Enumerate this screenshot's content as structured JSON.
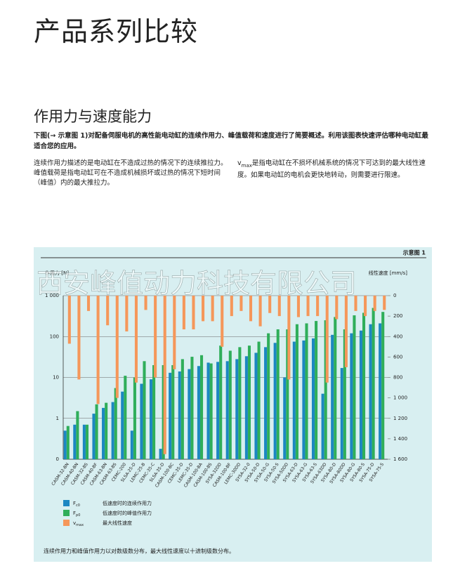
{
  "header": {
    "title": "产品系列比较",
    "subtitle": "作用力与速度能力",
    "lead": "下图(→ 示意图 1)对配备伺服电机的高性能电动缸的连续作用力、峰值载荷和速度进行了简要概述。利用该图表快速评估哪种电动缸最适合您的应用。",
    "col1": "连续作用力描述的是电动缸在不造成过热的情况下的连续推拉力。峰值载荷是指电动缸可在不造成机械损坏或过热的情况下短时间（峰值）内的最大推拉力。",
    "col2_symbol": "v",
    "col2_sub": "max",
    "col2": "是指电动缸在不损坏机械系统的情况下可达到的最大线性速度。如果电动缸的电机会更快地转动，则需要进行限速。"
  },
  "chart_data": {
    "type": "bar",
    "figure_label": "示意图 1",
    "watermark": "西安峰值动力科技有限公司",
    "ylabel": "作用力 [N]",
    "y2label": "线性速度 [mm/s]",
    "footnote": "连续作用力和峰值作用力以对数级数分布，最大线性速度以十进制级数分布。",
    "log_y": true,
    "y2_inverted": true,
    "grid": true,
    "ylim": [
      0.1,
      1000
    ],
    "yticks": [
      {
        "value": 0.1,
        "label": "0"
      },
      1,
      10,
      100,
      {
        "value": 1000,
        "label": "1 000"
      }
    ],
    "y2lim": [
      0,
      1600
    ],
    "y2ticks": [
      0,
      200,
      400,
      600,
      800,
      {
        "value": 1000,
        "label": "1 000"
      },
      {
        "value": 1200,
        "label": "1 200"
      },
      {
        "value": 1400,
        "label": "1 400"
      },
      {
        "value": 1600,
        "label": "1 600"
      }
    ],
    "categories": [
      "CASM-32-BN",
      "CASM-40-BN",
      "CASM-32-BS",
      "CASM-40-BF",
      "CASM-63-BN",
      "CASM-63-BS",
      "CEMC-200",
      "SLSA-25-D",
      "LEMC-25-B",
      "CEMC-35-C",
      "SLSA-35-D",
      "CASM-100-BC",
      "CEMC-35-D",
      "LEMC-35-D",
      "CASM-100-BA",
      "CASM-100-BS",
      "SYSA-32DD",
      "CASM-100-BF",
      "LEMC-30DD",
      "SYSA-32-0",
      "SYSA-50-D",
      "SYSA-50-G",
      "SYSA-50-S",
      "SYSA-50DD",
      "SYSA-63-D",
      "SYSA-63-G",
      "SYSA-63-S",
      "SYSA-63DD",
      "SYSA-80-D",
      "SYSA-80DD",
      "SYSA-80-G",
      "SYSA-80-S",
      "SYSA-75-D",
      "SYSA-75-S"
    ],
    "series": [
      {
        "name": "低速度时的连续作用力",
        "symbol": "F",
        "symbol_sub": "c0",
        "color": "#1c87c2",
        "values": [
          0.5,
          0.7,
          0.7,
          1.3,
          1.8,
          2.5,
          4.5,
          0.5,
          7,
          9,
          0.18,
          13,
          14,
          16,
          19,
          23,
          24,
          25,
          28,
          33,
          40,
          55,
          70,
          10,
          75,
          80,
          90,
          4,
          110,
          17,
          120,
          140,
          200,
          210
        ]
      },
      {
        "name": "低速度时的峰值作用力",
        "symbol": "F",
        "symbol_sub": "p0",
        "color": "#2fae5a",
        "values": [
          0.65,
          1.5,
          0.7,
          2.2,
          2.4,
          5.5,
          11,
          10,
          25,
          20,
          20,
          20,
          28,
          32,
          35,
          22,
          60,
          45,
          55,
          60,
          75,
          120,
          150,
          150,
          200,
          210,
          240,
          250,
          300,
          150,
          330,
          380,
          500,
          400
        ]
      },
      {
        "name": "最大线性速度",
        "symbol": "v",
        "symbol_sub": "max",
        "color": "#f5975a",
        "axis": "y2",
        "values": [
          470,
          820,
          150,
          1060,
          290,
          1000,
          350,
          850,
          140,
          800,
          1550,
          720,
          330,
          330,
          250,
          250,
          500,
          200,
          150,
          250,
          300,
          170,
          200,
          820,
          210,
          200,
          200,
          850,
          230,
          700,
          150,
          200,
          150,
          140
        ]
      }
    ]
  }
}
